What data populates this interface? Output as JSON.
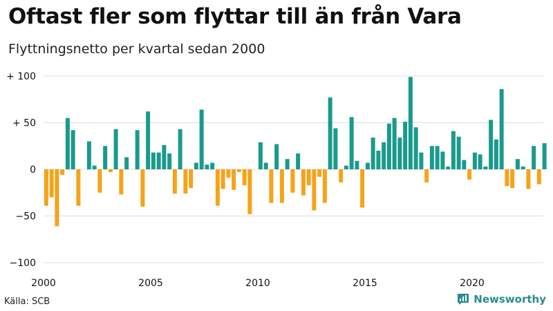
{
  "header": {
    "title": "Oftast fler som flyttar till än från Vara",
    "subtitle": "Flyttningsnetto per kvartal sedan 2000"
  },
  "footer": {
    "source": "Källa: SCB",
    "brand": "Newsworthy"
  },
  "colors": {
    "positive": "#1a9a8c",
    "negative": "#f5a31a",
    "grid": "#dddddd",
    "brand": "#2a8c8c"
  },
  "chart_data": {
    "type": "bar",
    "x_start_year": 2000,
    "ylim": [
      -100,
      100
    ],
    "y_ticks": [
      {
        "value": 100,
        "label": "+ 100"
      },
      {
        "value": 50,
        "label": "+  50"
      },
      {
        "value": 0,
        "label": "0"
      },
      {
        "value": -50,
        "label": "−50"
      },
      {
        "value": -100,
        "label": "−100"
      }
    ],
    "x_ticks": [
      {
        "year": 2000,
        "label": "2000"
      },
      {
        "year": 2005,
        "label": "2005"
      },
      {
        "year": 2010,
        "label": "2010"
      },
      {
        "year": 2015,
        "label": "2015"
      },
      {
        "year": 2020,
        "label": "2020"
      }
    ],
    "grid": true,
    "values": [
      -39,
      -30,
      -61,
      -6,
      55,
      42,
      -39,
      0,
      30,
      4,
      -25,
      25,
      -3,
      43,
      -27,
      13,
      0,
      42,
      -40,
      62,
      18,
      18,
      26,
      17,
      -26,
      43,
      -26,
      -20,
      7,
      64,
      5,
      7,
      -39,
      -21,
      -9,
      -22,
      -3,
      -17,
      -48,
      0,
      29,
      7,
      -36,
      27,
      -36,
      11,
      -25,
      17,
      -28,
      -17,
      -44,
      -8,
      -36,
      77,
      44,
      -14,
      4,
      56,
      9,
      -41,
      7,
      34,
      20,
      29,
      49,
      55,
      34,
      51,
      99,
      45,
      18,
      -14,
      25,
      25,
      19,
      3,
      41,
      35,
      10,
      -11,
      18,
      16,
      3,
      53,
      32,
      86,
      -18,
      -20,
      11,
      3,
      -21,
      25,
      -16,
      28
    ]
  }
}
